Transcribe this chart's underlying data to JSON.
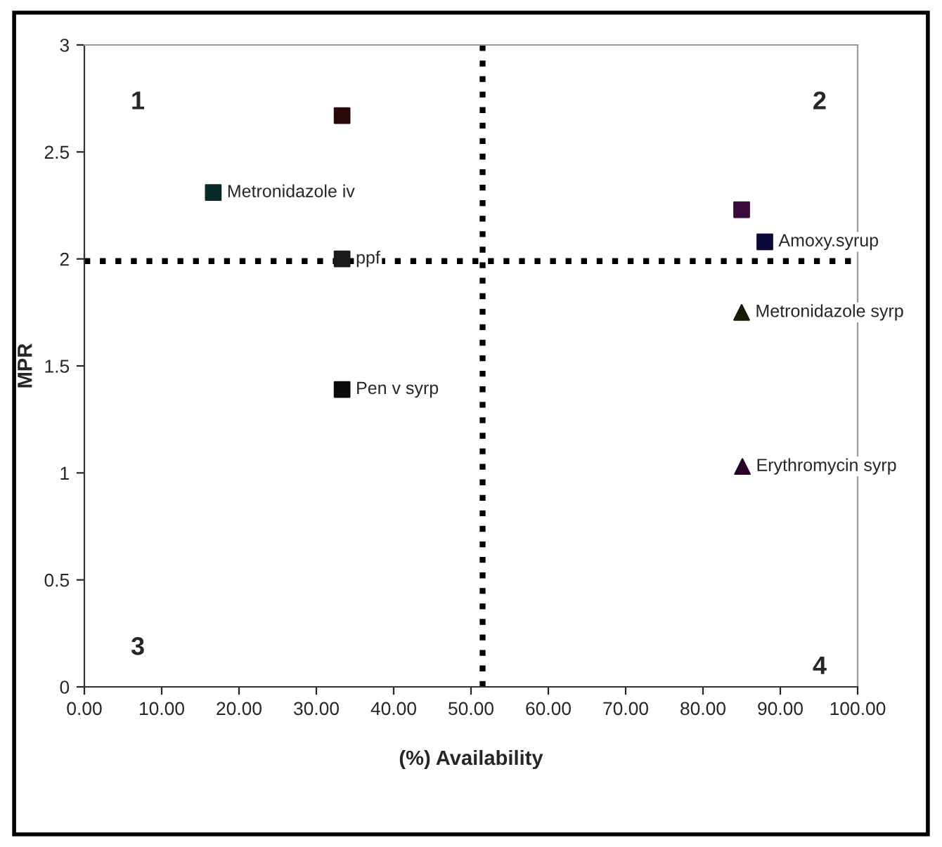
{
  "chart_data": {
    "type": "scatter",
    "xlabel": "(%) Availability",
    "ylabel": "MPR",
    "series": [
      {
        "marker": "square",
        "x": [
          33.33,
          16.67,
          33.33,
          33.33,
          85,
          88
        ],
        "values": [
          2.67,
          2.31,
          2.0,
          1.39,
          2.23,
          2.08
        ],
        "colors": [
          "#2a0808",
          "#0a2a2a",
          "#1a1a1a",
          "#0a0a0a",
          "#3a0a3a",
          "#0a0a3a"
        ]
      },
      {
        "marker": "triangle",
        "x": [
          85,
          85.1
        ],
        "values": [
          1.75,
          1.03
        ],
        "colors": [
          "#1a1a00",
          "#2a002a"
        ]
      }
    ],
    "annotations": [
      {
        "text": "Metronidazole iv",
        "x": 16.67,
        "y": 2.31
      },
      {
        "text": "ppf",
        "x": 33.33,
        "y": 2.0
      },
      {
        "text": "Pen v syrp",
        "x": 33.33,
        "y": 1.39
      },
      {
        "text": "Amoxy.syrup",
        "x": 88,
        "y": 2.08
      },
      {
        "text": "Metronidazole syrp",
        "x": 85,
        "y": 1.75
      },
      {
        "text": "Erythromycin syrp",
        "x": 85.1,
        "y": 1.03
      },
      "1",
      "2",
      "3",
      "4"
    ],
    "ref_lines": [
      {
        "axis": "x",
        "value": 51.5,
        "color": "#000000",
        "line_style": "dotted"
      },
      {
        "axis": "y",
        "value": 1.99,
        "color": "#000000",
        "line_style": "dotted"
      }
    ],
    "xlim": [
      0,
      100
    ],
    "ylim": [
      0,
      3
    ],
    "xticks": [
      {
        "value": 0,
        "label": "0.00"
      },
      {
        "value": 10,
        "label": "10.00"
      },
      {
        "value": 20,
        "label": "20.00"
      },
      {
        "value": 30,
        "label": "30.00"
      },
      {
        "value": 40,
        "label": "40.00"
      },
      {
        "value": 50,
        "label": "50.00"
      },
      {
        "value": 60,
        "label": "60.00"
      },
      {
        "value": 70,
        "label": "70.00"
      },
      {
        "value": 80,
        "label": "80.00"
      },
      {
        "value": 90,
        "label": "90.00"
      },
      {
        "value": 100,
        "label": "100.00"
      }
    ],
    "yticks": [
      0,
      0.5,
      1,
      1.5,
      2,
      2.5,
      3
    ],
    "grid": false,
    "legend": false
  }
}
